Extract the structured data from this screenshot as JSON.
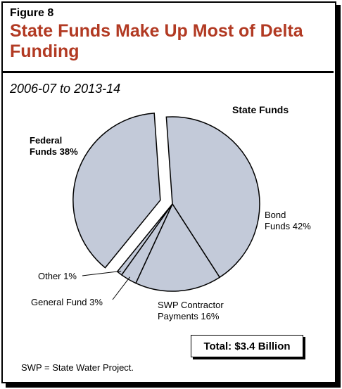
{
  "figure": {
    "label": "Figure 8",
    "title": "State Funds Make Up Most of Delta Funding",
    "subtitle": "2006-07 to 2013-14",
    "total": "Total: $3.4 Billion",
    "footnote": "SWP = State Water Project.",
    "group_label": "State Funds"
  },
  "colors": {
    "title": "#b23a23",
    "slice_fill": "#c3cad9",
    "stroke": "#000000"
  },
  "chart_data": {
    "type": "pie",
    "title": "State Funds Make Up Most of Delta Funding",
    "subtitle": "2006-07 to 2013-14",
    "unit": "percent of total",
    "slices": [
      {
        "label": "Bond Funds 42%",
        "name": "Bond Funds",
        "value": 42,
        "group": "State Funds"
      },
      {
        "label": "SWP Contractor Payments 16%",
        "name": "SWP Contractor Payments",
        "value": 16,
        "group": "State Funds"
      },
      {
        "label": "General Fund 3%",
        "name": "General Fund",
        "value": 3,
        "group": "State Funds"
      },
      {
        "label": "Other 1%",
        "name": "Other",
        "value": 1,
        "group": "State Funds"
      },
      {
        "label": "Federal Funds 38%",
        "name": "Federal Funds",
        "value": 38,
        "group": "exploded"
      }
    ],
    "labels": {
      "federal_line1": "Federal",
      "federal_line2": "Funds 38%",
      "bond_line1": "Bond",
      "bond_line2": "Funds 42%",
      "swp_line1": "SWP Contractor",
      "swp_line2": "Payments 16%",
      "general": "General Fund 3%",
      "other": "Other 1%"
    }
  }
}
